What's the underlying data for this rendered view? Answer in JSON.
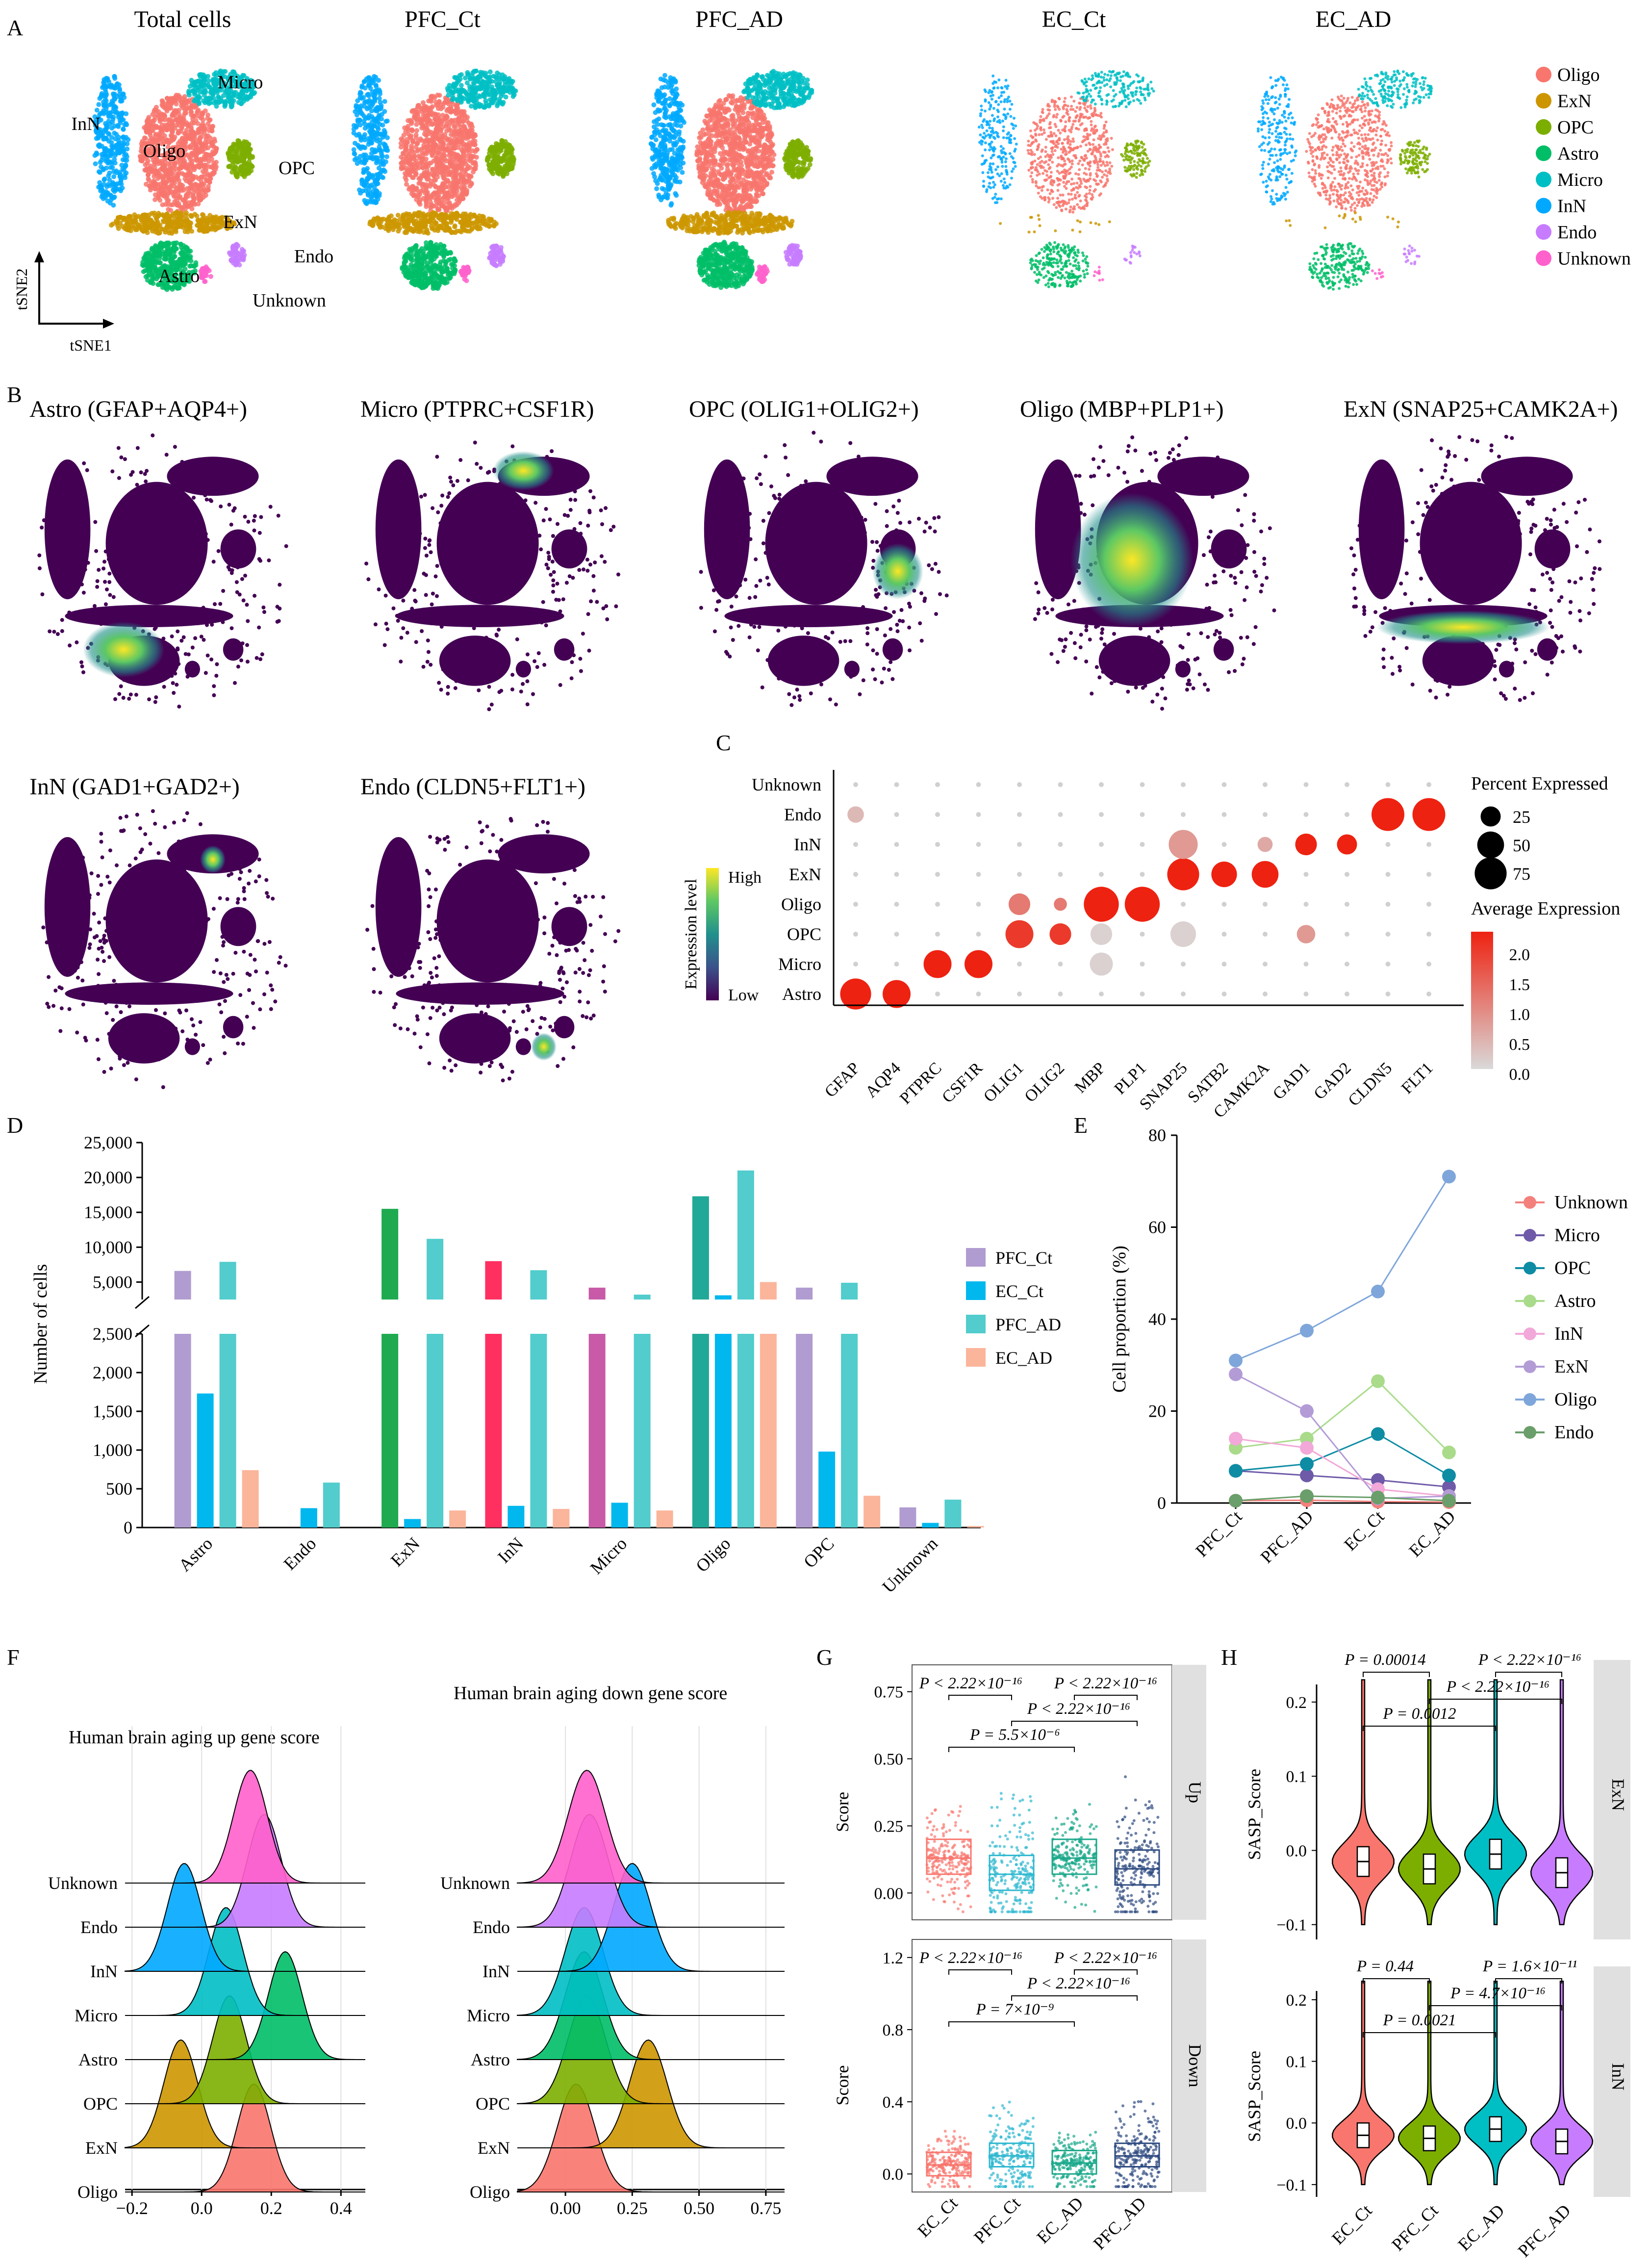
{
  "colors": {
    "Oligo": "#F8766D",
    "ExN": "#CD9600",
    "OPC": "#7CAE00",
    "Astro": "#00BE67",
    "Micro": "#00BFC4",
    "InN": "#00A9FF",
    "Endo": "#C77CFF",
    "Unknown": "#FF61CC",
    "viridis_low": "#440154",
    "viridis_high": "#FDE725"
  },
  "panel_labels": [
    "A",
    "B",
    "C",
    "D",
    "E",
    "F",
    "G",
    "H"
  ],
  "panelA": {
    "titles": [
      "Total cells",
      "PFC_Ct",
      "PFC_AD",
      "EC_Ct",
      "EC_AD"
    ],
    "cluster_labels": [
      "Micro",
      "InN",
      "Oligo",
      "OPC",
      "ExN",
      "Endo",
      "Astro",
      "Unknown"
    ],
    "axis_x": "tSNE1",
    "axis_y": "tSNE2",
    "legend": [
      "Oligo",
      "ExN",
      "OPC",
      "Astro",
      "Micro",
      "InN",
      "Endo",
      "Unknown"
    ]
  },
  "panelB": {
    "titles": [
      "Astro (GFAP+AQP4+)",
      "Micro (PTPRC+CSF1R)",
      "OPC (OLIG1+OLIG2+)",
      "Oligo (MBP+PLP1+)",
      "ExN (SNAP25+CAMK2A+)",
      "InN (GAD1+GAD2+)",
      "Endo (CLDN5+FLT1+)"
    ],
    "colorbar": {
      "title": "Expression level",
      "high": "High",
      "low": "Low"
    }
  },
  "chart_data": [
    {
      "panel": "C",
      "type": "dotplot",
      "genes": [
        "GFAP",
        "AQP4",
        "PTPRC",
        "CSF1R",
        "OLIG1",
        "OLIG2",
        "MBP",
        "PLP1",
        "SNAP25",
        "SATB2",
        "CAMK2A",
        "GAD1",
        "GAD2",
        "CLDN5",
        "FLT1"
      ],
      "cell_types": [
        "Unknown",
        "Endo",
        "InN",
        "ExN",
        "Oligo",
        "OPC",
        "Micro",
        "Astro"
      ],
      "dots": [
        {
          "type": "Astro",
          "gene": "GFAP",
          "pct": 70,
          "avg": 2.3
        },
        {
          "type": "Astro",
          "gene": "AQP4",
          "pct": 55,
          "avg": 2.3
        },
        {
          "type": "Micro",
          "gene": "PTPRC",
          "pct": 55,
          "avg": 2.3
        },
        {
          "type": "Micro",
          "gene": "CSF1R",
          "pct": 55,
          "avg": 2.3
        },
        {
          "type": "OPC",
          "gene": "OLIG1",
          "pct": 55,
          "avg": 2.0
        },
        {
          "type": "OPC",
          "gene": "OLIG2",
          "pct": 30,
          "avg": 2.0
        },
        {
          "type": "Oligo",
          "gene": "OLIG1",
          "pct": 30,
          "avg": 1.2
        },
        {
          "type": "Oligo",
          "gene": "OLIG2",
          "pct": 8,
          "avg": 1.2
        },
        {
          "type": "Oligo",
          "gene": "MBP",
          "pct": 92,
          "avg": 2.3
        },
        {
          "type": "Oligo",
          "gene": "PLP1",
          "pct": 92,
          "avg": 2.3
        },
        {
          "type": "ExN",
          "gene": "SNAP25",
          "pct": 75,
          "avg": 2.3
        },
        {
          "type": "ExN",
          "gene": "SATB2",
          "pct": 45,
          "avg": 2.3
        },
        {
          "type": "ExN",
          "gene": "CAMK2A",
          "pct": 50,
          "avg": 2.3
        },
        {
          "type": "InN",
          "gene": "SNAP25",
          "pct": 60,
          "avg": 0.8
        },
        {
          "type": "InN",
          "gene": "GAD1",
          "pct": 30,
          "avg": 2.3
        },
        {
          "type": "InN",
          "gene": "GAD2",
          "pct": 25,
          "avg": 2.3
        },
        {
          "type": "InN",
          "gene": "CAMK2A",
          "pct": 12,
          "avg": 0.6
        },
        {
          "type": "Endo",
          "gene": "CLDN5",
          "pct": 80,
          "avg": 2.3
        },
        {
          "type": "Endo",
          "gene": "FLT1",
          "pct": 80,
          "avg": 2.3
        },
        {
          "type": "OPC",
          "gene": "SNAP25",
          "pct": 45,
          "avg": 0.1
        },
        {
          "type": "Micro",
          "gene": "MBP",
          "pct": 35,
          "avg": 0.1
        },
        {
          "type": "OPC",
          "gene": "MBP",
          "pct": 30,
          "avg": 0.1
        },
        {
          "type": "OPC",
          "gene": "GAD1",
          "pct": 20,
          "avg": 0.8
        },
        {
          "type": "Endo",
          "gene": "GFAP",
          "pct": 15,
          "avg": 0.4
        }
      ],
      "size_legend": {
        "title": "Percent Expressed",
        "values": [
          "25",
          "50",
          "75"
        ]
      },
      "color_legend": {
        "title": "Average Expression",
        "ticks": [
          "2.0",
          "1.5",
          "1.0",
          "0.5",
          "0.0"
        ],
        "low": "#d9d9d9",
        "high": "#ee2211"
      }
    },
    {
      "panel": "D",
      "type": "bar",
      "ylabel": "Number of cells",
      "categories": [
        "Astro",
        "Endo",
        "ExN",
        "InN",
        "Micro",
        "Oligo",
        "OPC",
        "Unknown"
      ],
      "yticks_lower": [
        "0",
        "500",
        "1,000",
        "1,500",
        "2,000",
        "2,500"
      ],
      "yticks_upper": [
        "5,000",
        "10,000",
        "15,000",
        "20,000",
        "25,000"
      ],
      "series": [
        {
          "name": "PFC_Ct",
          "values": [
            6600,
            0,
            15500,
            8000,
            4200,
            17300,
            4200,
            260
          ]
        },
        {
          "name": "EC_Ct",
          "values": [
            1730,
            250,
            110,
            280,
            320,
            3100,
            980,
            60
          ]
        },
        {
          "name": "PFC_AD",
          "values": [
            7900,
            580,
            11200,
            6700,
            3200,
            21000,
            4900,
            360
          ]
        },
        {
          "name": "EC_AD",
          "values": [
            740,
            0,
            220,
            240,
            220,
            5000,
            410,
            20
          ]
        }
      ],
      "legend": [
        "PFC_Ct",
        "EC_Ct",
        "PFC_AD",
        "EC_AD"
      ],
      "legend_colors": [
        "#b09cd0",
        "#00b7ee",
        "#52cccc",
        "#fbb59b"
      ]
    },
    {
      "panel": "E",
      "type": "line",
      "ylabel": "Cell proportion (%)",
      "categories": [
        "PFC_Ct",
        "PFC_AD",
        "EC_Ct",
        "EC_AD"
      ],
      "ylim": [
        0,
        80
      ],
      "yticks": [
        "0",
        "20",
        "40",
        "60",
        "80"
      ],
      "series": [
        {
          "name": "Unknown",
          "color": "#F4807C",
          "values": [
            0.5,
            0.6,
            0.3,
            0.2
          ]
        },
        {
          "name": "Micro",
          "color": "#6E5AA8",
          "values": [
            7,
            6,
            5,
            3.5
          ]
        },
        {
          "name": "OPC",
          "color": "#0E8CA4",
          "values": [
            7,
            8.5,
            15,
            6
          ]
        },
        {
          "name": "Astro",
          "color": "#A9DB8A",
          "values": [
            12,
            14,
            26.5,
            11
          ]
        },
        {
          "name": "InN",
          "color": "#F2A8D8",
          "values": [
            14,
            12,
            3,
            1.5
          ]
        },
        {
          "name": "ExN",
          "color": "#B39CD6",
          "values": [
            28,
            20,
            1,
            1.5
          ]
        },
        {
          "name": "Oligo",
          "color": "#7FA6DA",
          "values": [
            31,
            37.5,
            46,
            71
          ]
        },
        {
          "name": "Endo",
          "color": "#6A9E6A",
          "values": [
            0.5,
            1.5,
            1.2,
            0.5
          ]
        }
      ]
    },
    {
      "panel": "F",
      "type": "ridge",
      "titles": [
        "Human brain aging up gene score",
        "Human brain aging down gene score"
      ],
      "rows": [
        "Unknown",
        "Endo",
        "InN",
        "Micro",
        "Astro",
        "OPC",
        "ExN",
        "Oligo"
      ],
      "up_peaks": [
        0.14,
        0.18,
        -0.05,
        0.07,
        0.24,
        0.08,
        -0.06,
        0.15
      ],
      "down_peaks": [
        0.08,
        0.09,
        0.25,
        0.07,
        0.07,
        0.08,
        0.31,
        0.04
      ],
      "up_xticks": [
        "−0.2",
        "0.0",
        "0.2",
        "0.4"
      ],
      "down_xticks": [
        "0.00",
        "0.25",
        "0.50",
        "0.75"
      ]
    },
    {
      "panel": "G",
      "type": "box",
      "groups": [
        "EC_Ct",
        "PFC_Ct",
        "EC_AD",
        "PFC_AD"
      ],
      "group_colors": [
        "#F8766D",
        "#2EB8D0",
        "#1AA88A",
        "#2D4A80"
      ],
      "ylabel": "Score",
      "facets": [
        {
          "strip": "Up",
          "yticks": [
            "0.75",
            "0.50",
            "0.25",
            "0.00"
          ],
          "medians": [
            0.13,
            0.07,
            0.13,
            0.09
          ],
          "pvalues": [
            "P < 2.22×10⁻¹⁶",
            "P < 2.22×10⁻¹⁶",
            "P < 2.22×10⁻¹⁶",
            "P = 5.5×10⁻⁶"
          ]
        },
        {
          "strip": "Down",
          "yticks": [
            "1.2",
            "0.8",
            "0.4",
            "0.0"
          ],
          "medians": [
            0.05,
            0.1,
            0.06,
            0.1
          ],
          "pvalues": [
            "P < 2.22×10⁻¹⁶",
            "P < 2.22×10⁻¹⁶",
            "P < 2.22×10⁻¹⁶",
            "P = 7×10⁻⁹"
          ]
        }
      ]
    },
    {
      "panel": "H",
      "type": "violin",
      "groups": [
        "EC_Ct",
        "PFC_Ct",
        "EC_AD",
        "PFC_AD"
      ],
      "group_colors": [
        "#F8766D",
        "#7CAE00",
        "#00BFC4",
        "#C77CFF"
      ],
      "ylabel": "SASP_Score",
      "facets": [
        {
          "strip": "ExN",
          "yticks": [
            "0.2",
            "0.1",
            "0.0",
            "−0.1"
          ],
          "medians": [
            -0.015,
            -0.025,
            -0.005,
            -0.03
          ],
          "pvalues": [
            "P = 0.00014",
            "P < 2.22×10⁻¹⁶",
            "P < 2.22×10⁻¹⁶",
            "P = 0.0012"
          ]
        },
        {
          "strip": "InN",
          "yticks": [
            "0.2",
            "0.1",
            "0.0",
            "−0.1"
          ],
          "medians": [
            -0.02,
            -0.025,
            -0.01,
            -0.03
          ],
          "pvalues": [
            "P = 0.44",
            "P = 1.6×10⁻¹¹",
            "P = 4.7×10⁻¹⁶",
            "P = 0.0021"
          ]
        }
      ]
    }
  ]
}
